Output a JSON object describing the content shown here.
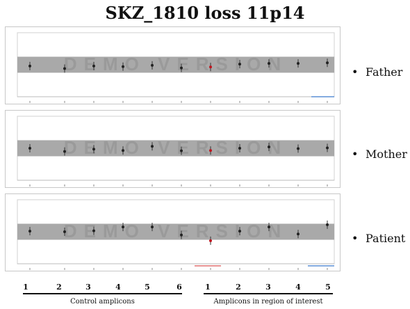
{
  "title": "SKZ_1810 loss 11p14",
  "panels": [
    {
      "role": "Father"
    },
    {
      "role": "Mother"
    },
    {
      "role": "Patient"
    }
  ],
  "bullet": "•",
  "watermark": "DEMO VERSION",
  "amplicon_numbers": [
    "1",
    "2",
    "3",
    "4",
    "5",
    "6",
    "1",
    "2",
    "3",
    "4",
    "5"
  ],
  "group_labels": {
    "control": "Control amplicons",
    "region": "Amplicons in region of interest"
  },
  "colors": {
    "band": "#a9a9a9",
    "point": "#222222",
    "highlight": "#c0141e",
    "baseline_blue": "#5b8fd6",
    "baseline_red": "#e07070"
  },
  "chart_data": [
    {
      "type": "scatter",
      "categories": [
        "1",
        "2",
        "3",
        "4",
        "5",
        "6",
        "1",
        "2",
        "3",
        "4",
        "5"
      ],
      "values": [
        0.96,
        0.88,
        0.96,
        0.94,
        0.98,
        0.9,
        0.93,
        1.02,
        1.04,
        1.04,
        1.06
      ],
      "highlight_index": 6,
      "ylim": [
        0,
        2
      ],
      "band": [
        0.75,
        1.25
      ]
    },
    {
      "type": "scatter",
      "categories": [
        "1",
        "2",
        "3",
        "4",
        "5",
        "6",
        "1",
        "2",
        "3",
        "4",
        "5"
      ],
      "values": [
        1.0,
        0.9,
        0.97,
        0.93,
        1.06,
        0.92,
        0.93,
        1.0,
        1.04,
        0.99,
        1.01
      ],
      "highlight_index": 6,
      "ylim": [
        0,
        2
      ],
      "band": [
        0.75,
        1.25
      ]
    },
    {
      "type": "scatter",
      "categories": [
        "1",
        "2",
        "3",
        "4",
        "5",
        "6",
        "1",
        "2",
        "3",
        "4",
        "5"
      ],
      "values": [
        1.02,
        1.0,
        1.03,
        1.15,
        1.15,
        0.9,
        0.72,
        1.02,
        1.15,
        0.93,
        1.22
      ],
      "highlight_index": 6,
      "ylim": [
        0,
        2
      ],
      "band": [
        0.75,
        1.25
      ]
    }
  ]
}
